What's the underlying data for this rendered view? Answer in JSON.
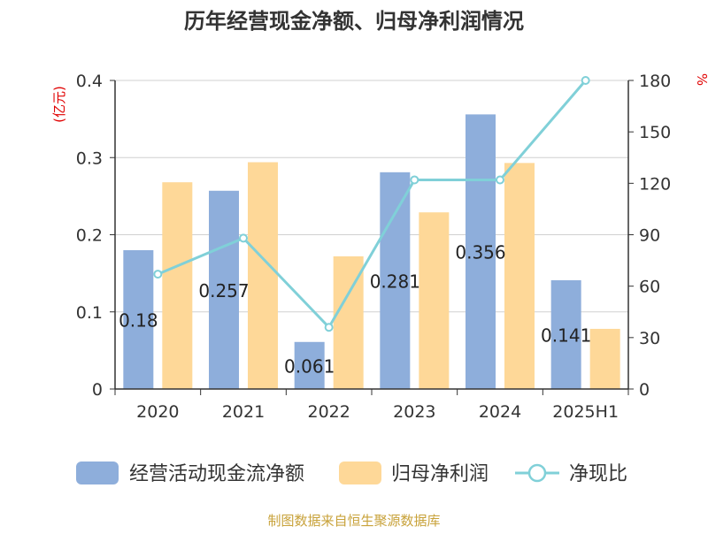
{
  "chart_data": {
    "type": "bar",
    "title": "历年经营现金净额、归母净利润情况",
    "source": "制图数据来自恒生聚源数据库",
    "categories": [
      "2020",
      "2021",
      "2022",
      "2023",
      "2024",
      "2025H1"
    ],
    "y_left": {
      "unit_label": "(亿元)",
      "range": [
        0,
        0.4
      ],
      "ticks": [
        "0",
        "0.1",
        "0.2",
        "0.3",
        "0.4"
      ]
    },
    "y_right": {
      "unit_label": "%",
      "range": [
        0,
        180
      ],
      "ticks": [
        "0",
        "30",
        "60",
        "90",
        "120",
        "150",
        "180"
      ]
    },
    "series": [
      {
        "name": "经营活动现金流净额",
        "type": "bar",
        "axis": "left",
        "color": "#8eaedb",
        "values": [
          0.18,
          0.257,
          0.061,
          0.281,
          0.356,
          0.141
        ],
        "labels": [
          "0.18",
          "0.257",
          "0.061",
          "0.281",
          "0.356",
          "0.141"
        ]
      },
      {
        "name": "归母净利润",
        "type": "bar",
        "axis": "left",
        "color": "#fed898",
        "values": [
          0.268,
          0.294,
          0.172,
          0.229,
          0.293,
          0.078
        ]
      },
      {
        "name": "净现比",
        "type": "line",
        "axis": "right",
        "color": "#80d0d8",
        "values": [
          67,
          88,
          36,
          122,
          122,
          180
        ]
      }
    ],
    "grid": true,
    "legend_position": "bottom"
  }
}
